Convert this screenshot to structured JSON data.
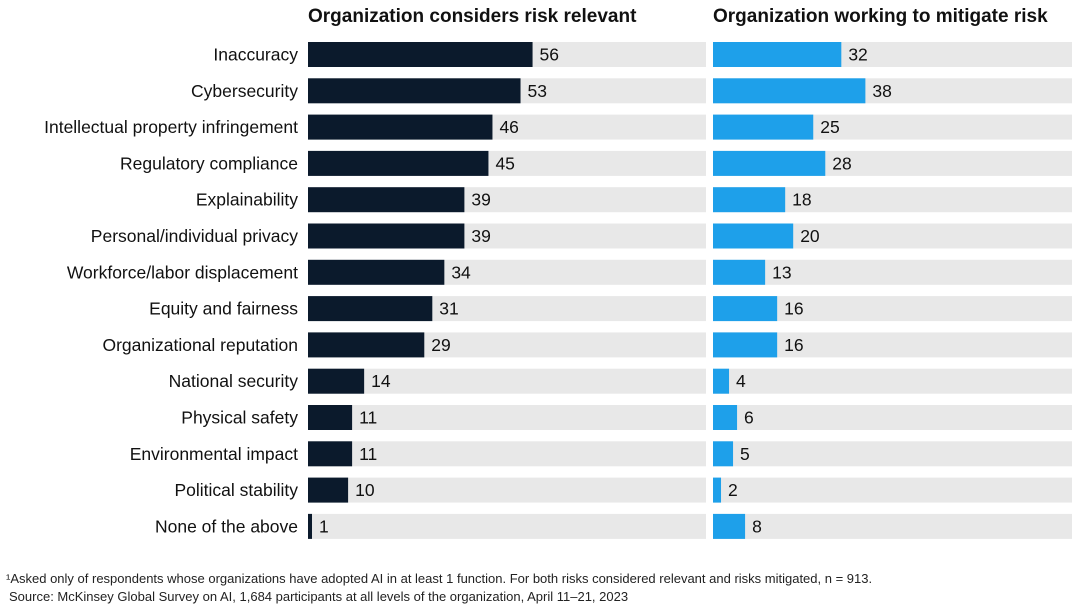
{
  "chart_data": {
    "type": "bar",
    "orientation": "horizontal",
    "categories": [
      "Inaccuracy",
      "Cybersecurity",
      "Intellectual property infringement",
      "Regulatory compliance",
      "Explainability",
      "Personal/individual privacy",
      "Workforce/labor displacement",
      "Equity and fairness",
      "Organizational reputation",
      "National security",
      "Physical safety",
      "Environmental impact",
      "Political stability",
      "None of the above"
    ],
    "series": [
      {
        "name": "Organization considers risk relevant",
        "values": [
          56,
          53,
          46,
          45,
          39,
          39,
          34,
          31,
          29,
          14,
          11,
          11,
          10,
          1
        ],
        "color": "#0b1a2c"
      },
      {
        "name": "Organization working to mitigate risk",
        "values": [
          32,
          38,
          25,
          28,
          18,
          20,
          13,
          16,
          16,
          4,
          6,
          5,
          2,
          8
        ],
        "color": "#1ea0ea"
      }
    ],
    "background_color": "#e8e8e8",
    "xlim": [
      0,
      100
    ],
    "grid": false,
    "legend": "panel titles at top"
  },
  "footnotes": {
    "note": "¹Asked only of respondents whose organizations have adopted AI in at least 1 function. For both risks considered relevant and risks mitigated, n = 913.",
    "source": "Source: McKinsey Global Survey on AI, 1,684 participants at all levels of the organization, April 11–21, 2023"
  }
}
